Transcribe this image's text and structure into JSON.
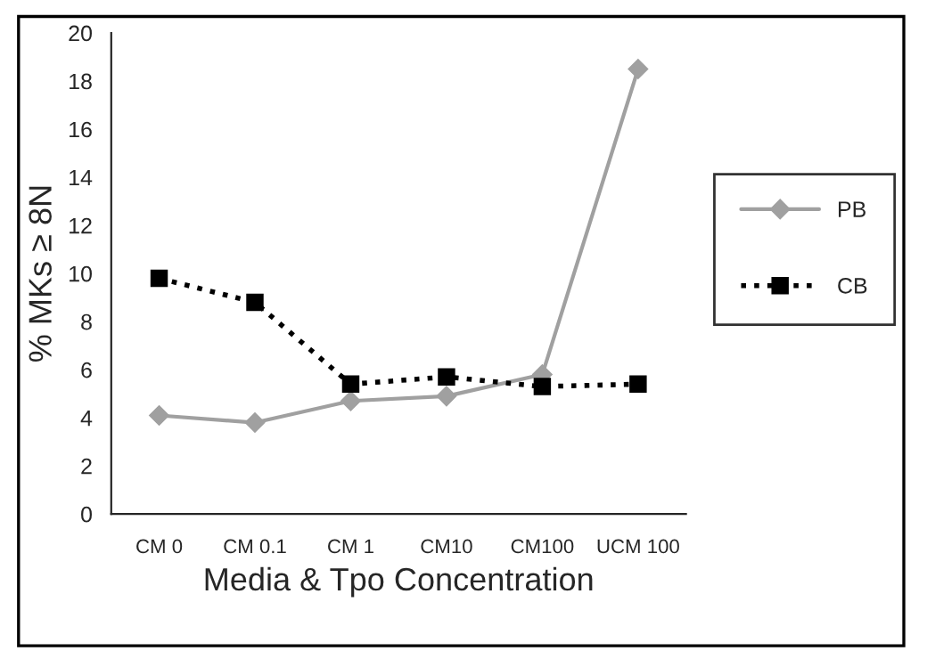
{
  "chart_data": {
    "type": "line",
    "xlabel": "Media & Tpo Concentration",
    "ylabel": "% MKs ≥ 8N",
    "categories": [
      "CM 0",
      "CM 0.1",
      "CM 1",
      "CM10",
      "CM100",
      "UCM 100"
    ],
    "series": [
      {
        "name": "PB",
        "color": "#a0a0a0",
        "marker": "diamond",
        "line_style": "solid",
        "values": [
          4.1,
          3.8,
          4.7,
          4.9,
          5.8,
          18.5
        ]
      },
      {
        "name": "CB",
        "color": "#000000",
        "marker": "square",
        "line_style": "dotted",
        "values": [
          9.8,
          8.8,
          5.4,
          5.7,
          5.3,
          5.4
        ]
      }
    ],
    "ylim": [
      0,
      20
    ],
    "yticks": [
      0,
      2,
      4,
      6,
      8,
      10,
      12,
      14,
      16,
      18,
      20
    ],
    "grid": false,
    "legend": "right"
  }
}
